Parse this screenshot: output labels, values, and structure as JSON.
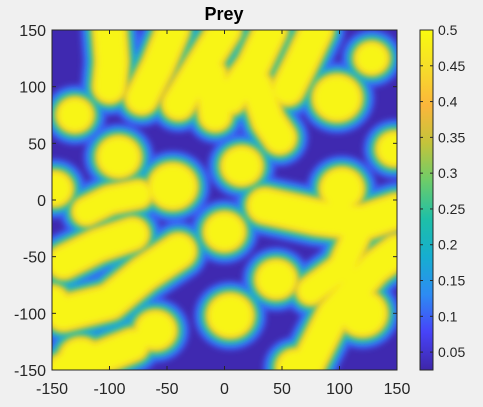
{
  "chart_data": {
    "type": "heatmap",
    "title": "Prey",
    "xlabel": "",
    "ylabel": "",
    "xlim": [
      -150,
      150
    ],
    "ylim": [
      -150,
      150
    ],
    "x_ticks": [
      -150,
      -100,
      -50,
      0,
      50,
      100,
      150
    ],
    "y_ticks": [
      -150,
      -100,
      -50,
      0,
      50,
      100,
      150
    ],
    "x_tick_labels": [
      "-150",
      "-100",
      "-50",
      "0",
      "50",
      "100",
      "150"
    ],
    "y_tick_labels": [
      "-150",
      "-100",
      "-50",
      "0",
      "50",
      "100",
      "150"
    ],
    "colorbar": {
      "range": [
        0.025,
        0.5
      ],
      "ticks": [
        0.05,
        0.1,
        0.15,
        0.2,
        0.25,
        0.3,
        0.35,
        0.4,
        0.45,
        0.5
      ],
      "tick_labels": [
        "0.05",
        "0.1",
        "0.15",
        "0.2",
        "0.25",
        "0.3",
        "0.35",
        "0.4",
        "0.45",
        "0.5"
      ],
      "colormap": "parula",
      "colormap_stops": [
        "#3e26a8",
        "#4743f8",
        "#2d8cf3",
        "#16aed0",
        "#1ebfa7",
        "#6ccc6a",
        "#c3c43b",
        "#fbb63b",
        "#f6dd2a",
        "#f9fb0e"
      ]
    },
    "grid": false,
    "value_range": [
      0.025,
      0.5
    ],
    "background_value": 0.03,
    "peak_value": 0.5,
    "features": {
      "spots": [
        {
          "x": 0,
          "y": -28,
          "r": 15
        },
        {
          "x": 45,
          "y": -70,
          "r": 15
        },
        {
          "x": 5,
          "y": -102,
          "r": 17
        },
        {
          "x": 102,
          "y": 10,
          "r": 16
        },
        {
          "x": 15,
          "y": 30,
          "r": 15
        },
        {
          "x": -92,
          "y": 38,
          "r": 16
        },
        {
          "x": -45,
          "y": 12,
          "r": 18
        },
        {
          "x": 128,
          "y": 125,
          "r": 12
        },
        {
          "x": 98,
          "y": 90,
          "r": 18
        },
        {
          "x": -130,
          "y": 75,
          "r": 13
        },
        {
          "x": -148,
          "y": 10,
          "r": 13
        },
        {
          "x": 148,
          "y": 45,
          "r": 13
        },
        {
          "x": 120,
          "y": -100,
          "r": 18
        },
        {
          "x": -125,
          "y": -140,
          "r": 16
        },
        {
          "x": -60,
          "y": -115,
          "r": 15
        },
        {
          "x": 62,
          "y": -148,
          "r": 14
        },
        {
          "x": -150,
          "y": -90,
          "r": 12
        }
      ],
      "stripes": [
        {
          "points": [
            [
              -100,
              150
            ],
            [
              -98,
              122
            ],
            [
              -100,
              100
            ]
          ],
          "w": 12
        },
        {
          "points": [
            [
              -45,
              150
            ],
            [
              -58,
              118
            ],
            [
              -72,
              90
            ]
          ],
          "w": 12
        },
        {
          "points": [
            [
              0,
              150
            ],
            [
              -20,
              118
            ],
            [
              -40,
              85
            ]
          ],
          "w": 12
        },
        {
          "points": [
            [
              40,
              150
            ],
            [
              25,
              118
            ],
            [
              5,
              90
            ]
          ],
          "w": 12
        },
        {
          "points": [
            [
              80,
              150
            ],
            [
              65,
              118
            ],
            [
              55,
              98
            ]
          ],
          "w": 12
        },
        {
          "points": [
            [
              -12,
              110
            ],
            [
              -8,
              75
            ]
          ],
          "w": 12
        },
        {
          "points": [
            [
              28,
              100
            ],
            [
              38,
              70
            ],
            [
              48,
              55
            ]
          ],
          "w": 12
        },
        {
          "points": [
            [
              -140,
              -55
            ],
            [
              -110,
              -40
            ],
            [
              -80,
              -30
            ]
          ],
          "w": 12
        },
        {
          "points": [
            [
              -140,
              -100
            ],
            [
              -100,
              -90
            ],
            [
              -70,
              -65
            ],
            [
              -40,
              -45
            ]
          ],
          "w": 13
        },
        {
          "points": [
            [
              -140,
              -150
            ],
            [
              -110,
              -140
            ],
            [
              -80,
              -128
            ]
          ],
          "w": 12
        },
        {
          "points": [
            [
              35,
              -5
            ],
            [
              80,
              -15
            ],
            [
              120,
              -20
            ],
            [
              150,
              -10
            ]
          ],
          "w": 13
        },
        {
          "points": [
            [
              70,
              -150
            ],
            [
              95,
              -100
            ],
            [
              130,
              -60
            ],
            [
              150,
              -45
            ]
          ],
          "w": 12
        },
        {
          "points": [
            [
              75,
              -80
            ],
            [
              102,
              -60
            ],
            [
              115,
              -30
            ]
          ],
          "w": 10
        },
        {
          "points": [
            [
              -120,
              -10
            ],
            [
              -100,
              0
            ],
            [
              -75,
              5
            ]
          ],
          "w": 10
        }
      ]
    }
  }
}
